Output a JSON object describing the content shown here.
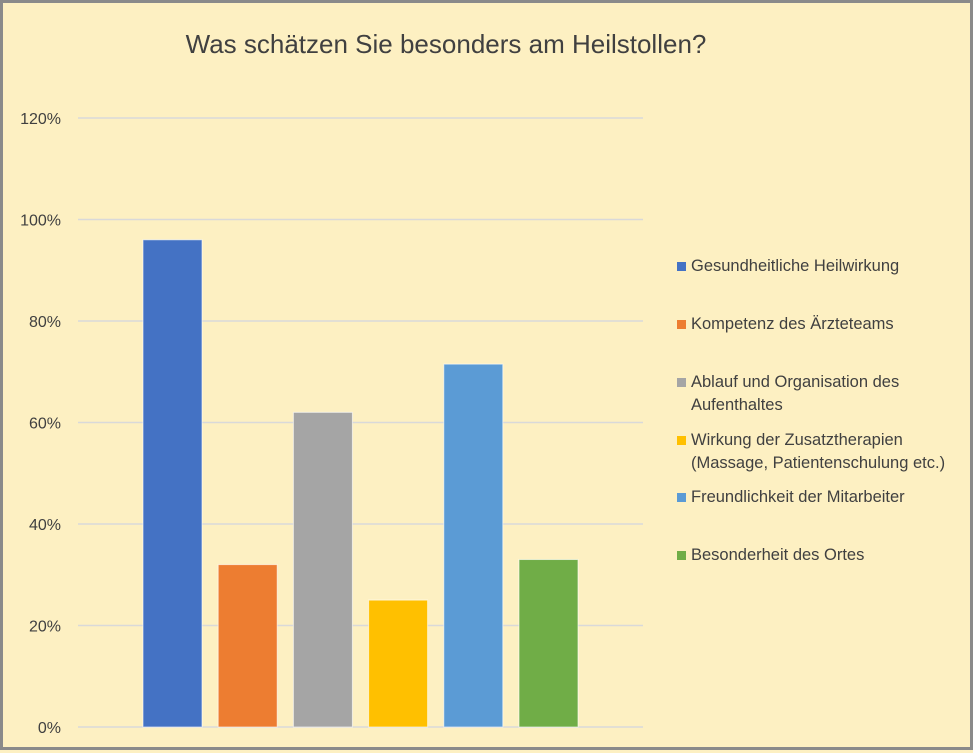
{
  "chart_data": {
    "type": "bar",
    "title": "Was schätzen Sie besonders am Heilstollen?",
    "xlabel": "",
    "ylabel": "",
    "ylim": [
      0,
      1.2
    ],
    "y_ticks": [
      "0%",
      "20%",
      "40%",
      "60%",
      "80%",
      "100%",
      "120%"
    ],
    "grid": true,
    "legend_position": "right",
    "series": [
      {
        "name": "Gesundheitliche Heilwirkung",
        "value": 0.96,
        "color": "#4472c4"
      },
      {
        "name": "Kompetenz des Ärzteteams",
        "value": 0.32,
        "color": "#ed7d31"
      },
      {
        "name": "Ablauf und Organisation des Aufenthaltes",
        "value": 0.62,
        "color": "#a5a5a5"
      },
      {
        "name": "Wirkung der Zusatztherapien (Massage, Patientenschulung etc.)",
        "value": 0.25,
        "color": "#ffc000"
      },
      {
        "name": "Freundlichkeit der Mitarbeiter",
        "value": 0.715,
        "color": "#5b9bd5"
      },
      {
        "name": "Besonderheit des Ortes",
        "value": 0.33,
        "color": "#70ad47"
      }
    ]
  }
}
